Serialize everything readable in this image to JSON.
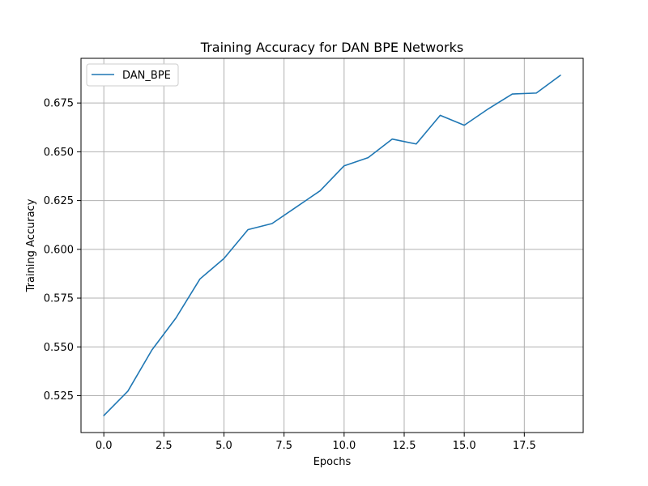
{
  "chart_data": {
    "type": "line",
    "title": "Training Accuracy for DAN BPE Networks",
    "xlabel": "Epochs",
    "ylabel": "Training Accuracy",
    "x": [
      0,
      1,
      2,
      3,
      4,
      5,
      6,
      7,
      8,
      9,
      10,
      11,
      12,
      13,
      14,
      15,
      16,
      17,
      18,
      19
    ],
    "series": [
      {
        "name": "DAN_BPE",
        "color": "#1f77b4",
        "values": [
          0.5148,
          0.5273,
          0.5484,
          0.5648,
          0.5848,
          0.5953,
          0.6101,
          0.6132,
          0.6216,
          0.63,
          0.6428,
          0.647,
          0.6565,
          0.654,
          0.6687,
          0.6636,
          0.672,
          0.6796,
          0.6801,
          0.6892
        ]
      }
    ],
    "xlim": [
      -0.95,
      19.95
    ],
    "ylim": [
      0.5061,
      0.6979
    ],
    "xticks": [
      0.0,
      2.5,
      5.0,
      7.5,
      10.0,
      12.5,
      15.0,
      17.5
    ],
    "xtick_labels": [
      "0.0",
      "2.5",
      "5.0",
      "7.5",
      "10.0",
      "12.5",
      "15.0",
      "17.5"
    ],
    "yticks": [
      0.525,
      0.55,
      0.575,
      0.6,
      0.625,
      0.65,
      0.675
    ],
    "ytick_labels": [
      "0.525",
      "0.550",
      "0.575",
      "0.600",
      "0.625",
      "0.650",
      "0.675"
    ],
    "grid": true,
    "legend_position": "top-left"
  }
}
